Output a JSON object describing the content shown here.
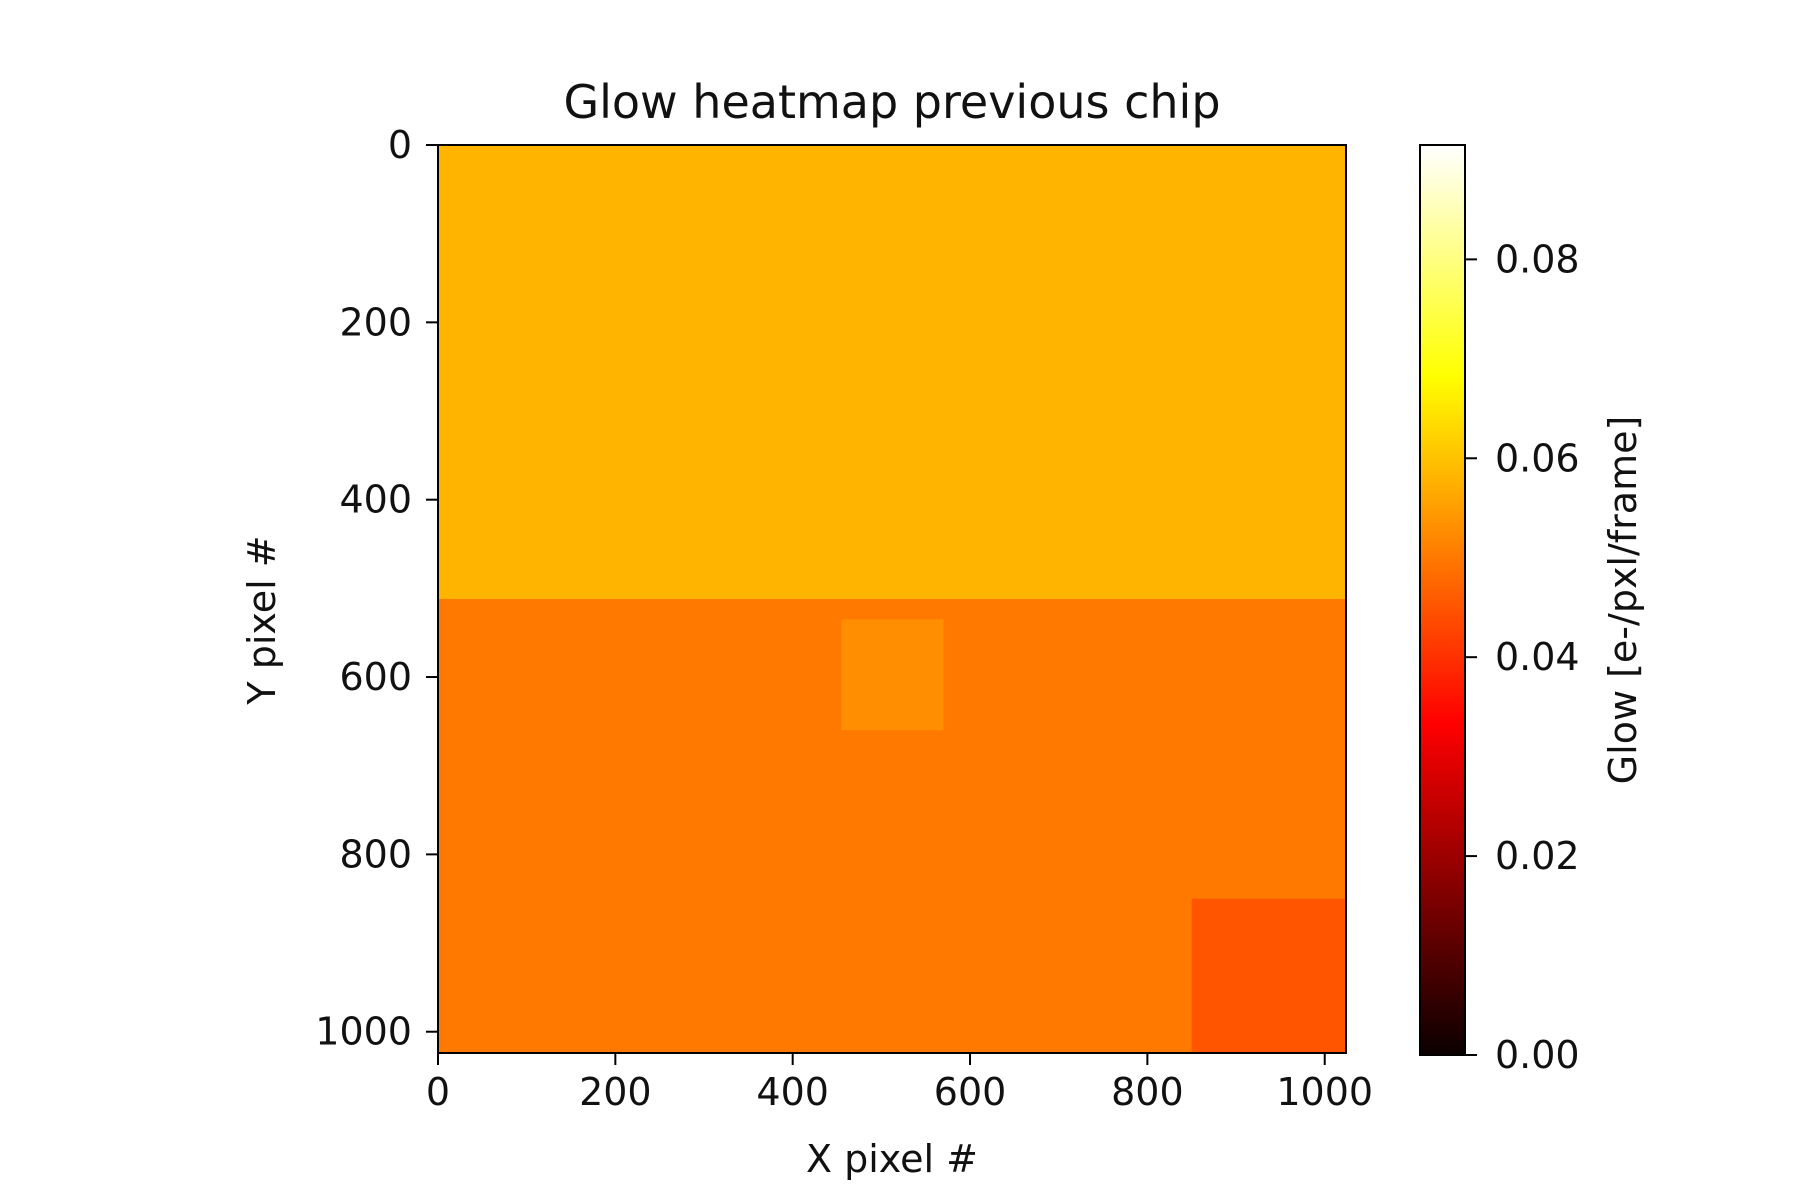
{
  "chart_data": {
    "type": "heatmap",
    "title": "Glow heatmap previous chip",
    "xlabel": "X pixel #",
    "ylabel": "Y pixel #",
    "xlim": [
      0,
      1024
    ],
    "ylim": [
      1024,
      0
    ],
    "x_ticks": [
      0,
      200,
      400,
      600,
      800,
      1000
    ],
    "y_ticks": [
      0,
      200,
      400,
      600,
      800,
      1000
    ],
    "x_tick_labels": [
      "0",
      "200",
      "400",
      "600",
      "800",
      "1000"
    ],
    "y_tick_labels": [
      "0",
      "200",
      "400",
      "600",
      "800",
      "1000"
    ],
    "colorbar": {
      "label": "Glow [e-/pxl/frame]",
      "colormap": "hot",
      "range": [
        0,
        0.0915
      ],
      "ticks": [
        0,
        0.02,
        0.04,
        0.06,
        0.08
      ],
      "tick_labels": [
        "0.00",
        "0.02",
        "0.04",
        "0.06",
        "0.08"
      ]
    },
    "regions": [
      {
        "name": "upper half",
        "x_range": [
          0,
          1024
        ],
        "y_range": [
          0,
          512
        ],
        "mean_glow": 0.058
      },
      {
        "name": "lower half",
        "x_range": [
          0,
          1024
        ],
        "y_range": [
          512,
          1024
        ],
        "mean_glow": 0.05
      },
      {
        "name": "brighter patch",
        "x_range": [
          455,
          570
        ],
        "y_range": [
          535,
          660
        ],
        "mean_glow": 0.053
      },
      {
        "name": "bottom-right corner",
        "x_range": [
          850,
          1024
        ],
        "y_range": [
          850,
          1024
        ],
        "mean_glow": 0.045
      }
    ]
  }
}
